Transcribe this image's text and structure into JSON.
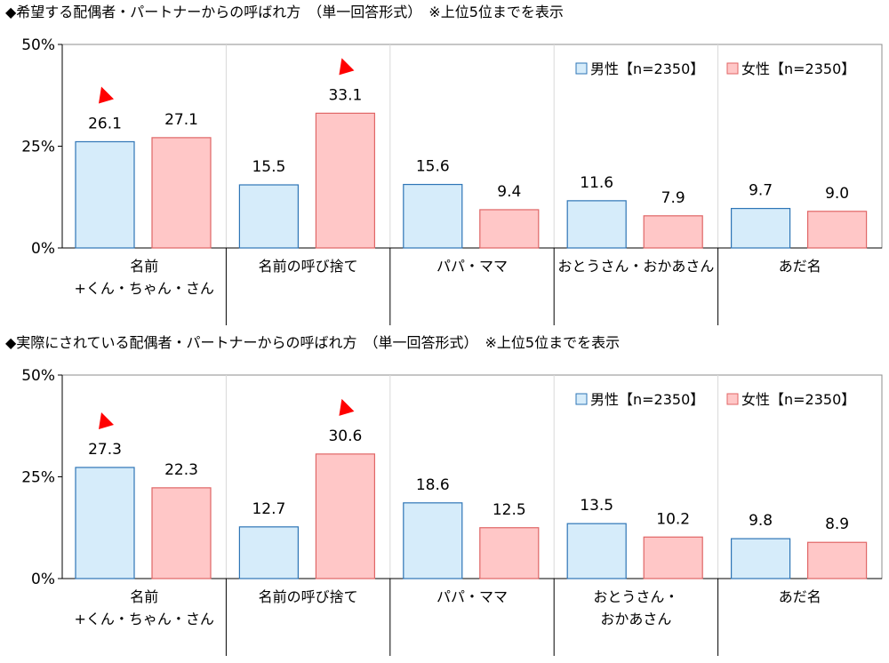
{
  "colors": {
    "male_fill": "#d6ecfa",
    "male_stroke": "#2e75b6",
    "female_fill": "#ffc7c7",
    "female_stroke": "#e06666",
    "marker": "#ff0000",
    "grid": "#d9d9d9",
    "axis": "#000000"
  },
  "chart_data": [
    {
      "type": "bar",
      "title": "◆希望する配偶者・パートナーからの呼ばれ方　（単一回答形式）　※上位5位までを表示",
      "categories": [
        [
          "名前",
          "+くん・ちゃん・さん"
        ],
        [
          "名前の呼び捨て"
        ],
        [
          "パパ・ママ"
        ],
        [
          "おとうさん・おかあさん"
        ],
        [
          "あだ名"
        ]
      ],
      "series": [
        {
          "name": "男性【n=2350】",
          "values": [
            26.1,
            15.5,
            15.6,
            11.6,
            9.7
          ]
        },
        {
          "name": "女性【n=2350】",
          "values": [
            27.1,
            33.1,
            9.4,
            7.9,
            9.0
          ]
        }
      ],
      "value_labels": [
        [
          "26.1",
          "15.5",
          "15.6",
          "11.6",
          "9.7"
        ],
        [
          "27.1",
          "33.1",
          "9.4",
          "7.9",
          "9.0"
        ]
      ],
      "ylim": [
        0,
        50
      ],
      "yticks": [
        "0%",
        "25%",
        "50%"
      ],
      "highlight_markers": [
        {
          "series": 0,
          "category": 0
        },
        {
          "series": 1,
          "category": 1
        }
      ],
      "legend": "top-right",
      "grid": "vertical category separators"
    },
    {
      "type": "bar",
      "title": "◆実際にされている配偶者・パートナーからの呼ばれ方　（単一回答形式）　※上位5位までを表示",
      "categories": [
        [
          "名前",
          "+くん・ちゃん・さん"
        ],
        [
          "名前の呼び捨て"
        ],
        [
          "パパ・ママ"
        ],
        [
          "おとうさん・",
          "おかあさん"
        ],
        [
          "あだ名"
        ]
      ],
      "series": [
        {
          "name": "男性【n=2350】",
          "values": [
            27.3,
            12.7,
            18.6,
            13.5,
            9.8
          ]
        },
        {
          "name": "女性【n=2350】",
          "values": [
            22.3,
            30.6,
            12.5,
            10.2,
            8.9
          ]
        }
      ],
      "value_labels": [
        [
          "27.3",
          "12.7",
          "18.6",
          "13.5",
          "9.8"
        ],
        [
          "22.3",
          "30.6",
          "12.5",
          "10.2",
          "8.9"
        ]
      ],
      "ylim": [
        0,
        50
      ],
      "yticks": [
        "0%",
        "25%",
        "50%"
      ],
      "highlight_markers": [
        {
          "series": 0,
          "category": 0
        },
        {
          "series": 1,
          "category": 1
        }
      ],
      "legend": "top-right",
      "grid": "vertical category separators"
    }
  ]
}
